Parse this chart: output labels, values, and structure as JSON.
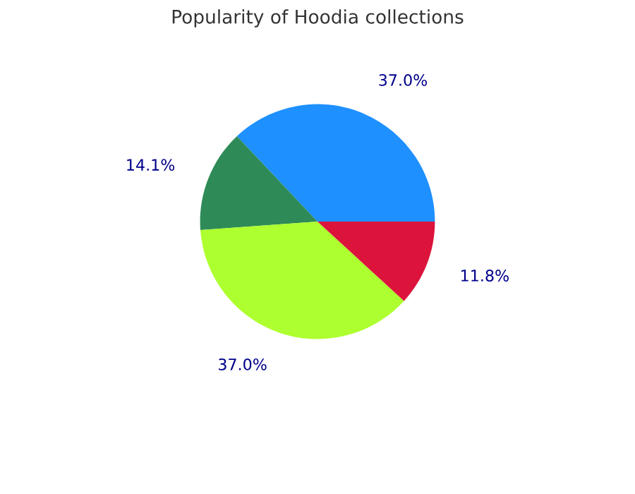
{
  "chart_data": {
    "type": "pie",
    "title": "Popularity of Hoodia collections",
    "categories": [
      null,
      null,
      null,
      null
    ],
    "values": [
      37.0,
      14.1,
      37.0,
      11.8
    ],
    "colors": [
      "#1e90ff",
      "#2e8b57",
      "#adff2f",
      "#dc143c"
    ],
    "value_labels": [
      "37.0%",
      "14.1%",
      "37.0%",
      "11.8%"
    ],
    "legend": false
  }
}
